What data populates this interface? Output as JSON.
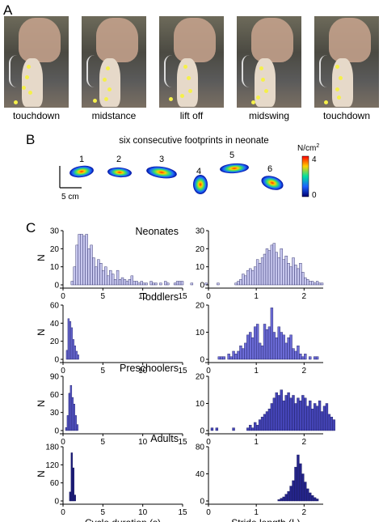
{
  "panels": {
    "a": "A",
    "b": "B",
    "c": "C"
  },
  "phases": [
    "touchdown",
    "midstance",
    "lift off",
    "midswing",
    "touchdown"
  ],
  "footprints": {
    "title": "six consecutive footprints in neonate",
    "numbers": [
      "1",
      "2",
      "3",
      "4",
      "5",
      "6"
    ],
    "scale_label": "5 cm",
    "colorbar": {
      "unit": "N/cm",
      "unit_sup": "2",
      "max": "4",
      "min": "0"
    }
  },
  "chart_data": [
    {
      "type": "bar",
      "title": "Neonates",
      "xlabel": "",
      "ylabel": "N",
      "xlim": [
        0,
        15
      ],
      "ylim": [
        0,
        30
      ],
      "xticks": [
        "0",
        "5",
        "10",
        "15"
      ],
      "yticks": [
        "0",
        "10",
        "20",
        "30"
      ],
      "bin_start": 1.0,
      "bin_width": 0.3,
      "fill": "#c7c7ee",
      "values": [
        2,
        10,
        22,
        28,
        28,
        27,
        28,
        20,
        22,
        15,
        10,
        14,
        12,
        8,
        10,
        5,
        8,
        6,
        3,
        8,
        3,
        4,
        3,
        2,
        3,
        5,
        2,
        2,
        1,
        2,
        1,
        1,
        0,
        2,
        1,
        1,
        0,
        1,
        0,
        2,
        1,
        0,
        0,
        1,
        2,
        2,
        2,
        0,
        0,
        0,
        1,
        0,
        0,
        0,
        0,
        0,
        1,
        0,
        0,
        0,
        0,
        1
      ]
    },
    {
      "type": "bar",
      "title": "",
      "xlabel": "",
      "ylabel": "",
      "xlim": [
        0,
        2.4
      ],
      "ylim": [
        0,
        30
      ],
      "xticks": [
        "0",
        "1",
        "2"
      ],
      "yticks": [
        "0",
        "10",
        "20",
        "30"
      ],
      "bin_start": 0.55,
      "bin_width": 0.05,
      "fill": "#c7c7ee",
      "values": [
        1,
        2,
        3,
        6,
        5,
        8,
        9,
        8,
        10,
        14,
        12,
        15,
        17,
        20,
        19,
        22,
        23,
        18,
        15,
        20,
        14,
        16,
        12,
        10,
        15,
        11,
        9,
        12,
        7,
        4,
        3,
        2,
        2,
        1,
        2,
        1,
        1
      ]
    },
    {
      "type": "bar",
      "title": "Toddlers",
      "xlabel": "",
      "ylabel": "N",
      "xlim": [
        0,
        15
      ],
      "ylim": [
        0,
        60
      ],
      "xticks": [
        "0",
        "5",
        "10",
        "15"
      ],
      "yticks": [
        "0",
        "20",
        "40",
        "60"
      ],
      "bin_start": 0.4,
      "bin_width": 0.2,
      "fill": "#6b6bd6",
      "values": [
        10,
        45,
        42,
        35,
        22,
        15,
        9,
        5
      ]
    },
    {
      "type": "bar",
      "title": "",
      "xlabel": "",
      "ylabel": "",
      "xlim": [
        0,
        2.4
      ],
      "ylim": [
        0,
        20
      ],
      "xticks": [
        "0",
        "1",
        "2"
      ],
      "yticks": [
        "0",
        "10",
        "20"
      ],
      "bin_start": 0.2,
      "bin_width": 0.05,
      "fill": "#6b6bd6",
      "values": [
        1,
        1,
        1,
        0,
        2,
        1,
        3,
        2,
        3,
        5,
        4,
        6,
        9,
        10,
        8,
        12,
        13,
        6,
        5,
        13,
        11,
        12,
        19,
        10,
        8,
        12,
        10,
        9,
        6,
        8,
        9,
        4,
        3,
        5,
        2,
        1,
        2,
        0,
        1,
        0,
        1,
        1
      ]
    },
    {
      "type": "bar",
      "title": "Preschoolers",
      "xlabel": "",
      "ylabel": "N",
      "xlim": [
        0,
        15
      ],
      "ylim": [
        0,
        90
      ],
      "xticks": [
        "0",
        "5",
        "10",
        "15"
      ],
      "yticks": [
        "0",
        "30",
        "60",
        "90"
      ],
      "bin_start": 0.3,
      "bin_width": 0.2,
      "fill": "#5656c8",
      "values": [
        5,
        25,
        62,
        75,
        55,
        44,
        25,
        10
      ]
    },
    {
      "type": "bar",
      "title": "",
      "xlabel": "",
      "ylabel": "",
      "xlim": [
        0,
        2.4
      ],
      "ylim": [
        0,
        20
      ],
      "xticks": [
        "0",
        "1",
        "2"
      ],
      "yticks": [
        "0",
        "10",
        "20"
      ],
      "bin_start": 0.05,
      "bin_width": 0.05,
      "fill": "#4545b8",
      "values": [
        1,
        0,
        1,
        0,
        0,
        0,
        0,
        0,
        0,
        1,
        0,
        0,
        0,
        0,
        0,
        1,
        2,
        1,
        3,
        2,
        4,
        5,
        6,
        7,
        8,
        10,
        12,
        14,
        13,
        15,
        11,
        13,
        14,
        12,
        13,
        10,
        12,
        11,
        13,
        12,
        9,
        11,
        8,
        10,
        9,
        11,
        7,
        9,
        10,
        6,
        5,
        4
      ]
    },
    {
      "type": "bar",
      "title": "Adults",
      "xlabel": "Cycle duration (s)",
      "ylabel": "N",
      "xlim": [
        0,
        15
      ],
      "ylim": [
        0,
        180
      ],
      "xticks": [
        "0",
        "5",
        "10",
        "15"
      ],
      "yticks": [
        "0",
        "60",
        "120",
        "180"
      ],
      "bin_start": 0.8,
      "bin_width": 0.2,
      "fill": "#1a1a7a",
      "values": [
        30,
        160,
        110,
        20
      ]
    },
    {
      "type": "bar",
      "title": "",
      "xlabel": "Stride length (L)",
      "ylabel": "",
      "xlim": [
        0,
        2.4
      ],
      "ylim": [
        0,
        80
      ],
      "xticks": [
        "0",
        "1",
        "2"
      ],
      "yticks": [
        "0",
        "40",
        "80"
      ],
      "bin_start": 1.45,
      "bin_width": 0.05,
      "fill": "#24248a",
      "values": [
        2,
        4,
        6,
        10,
        14,
        22,
        30,
        50,
        68,
        55,
        40,
        28,
        18,
        12,
        8,
        5,
        3
      ]
    }
  ]
}
